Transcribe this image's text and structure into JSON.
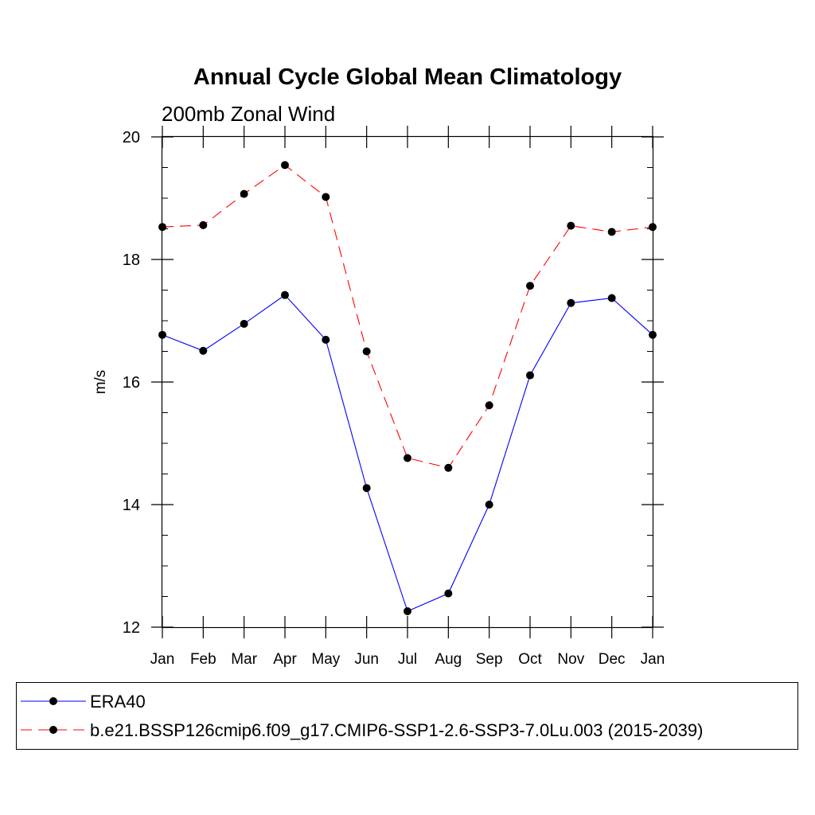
{
  "chart_data": {
    "type": "line",
    "title": "Annual Cycle Global Mean Climatology",
    "subtitle": "200mb Zonal Wind",
    "ylabel": "m/s",
    "xlabel": "",
    "categories": [
      "Jan",
      "Feb",
      "Mar",
      "Apr",
      "May",
      "Jun",
      "Jul",
      "Aug",
      "Sep",
      "Oct",
      "Nov",
      "Dec",
      "Jan"
    ],
    "ylim": [
      12,
      20
    ],
    "yticks": [
      12,
      14,
      16,
      18,
      20
    ],
    "y_minor_step": 0.5,
    "grid": false,
    "legend_position": "bottom",
    "series": [
      {
        "name": "ERA40",
        "color": "#0000ff",
        "dash": "solid",
        "marker": "filled-circle",
        "values": [
          16.77,
          16.51,
          16.95,
          17.42,
          16.69,
          14.27,
          12.26,
          12.55,
          14.0,
          16.11,
          17.29,
          17.37,
          16.77
        ]
      },
      {
        "name": "b.e21.BSSP126cmip6.f09_g17.CMIP6-SSP1-2.6-SSP3-7.0Lu.003 (2015-2039)",
        "color": "#ff0000",
        "dash": "dashed",
        "marker": "filled-circle",
        "values": [
          18.53,
          18.56,
          19.07,
          19.54,
          19.02,
          16.5,
          14.76,
          14.6,
          15.62,
          17.57,
          18.55,
          18.45,
          18.53
        ]
      }
    ]
  }
}
